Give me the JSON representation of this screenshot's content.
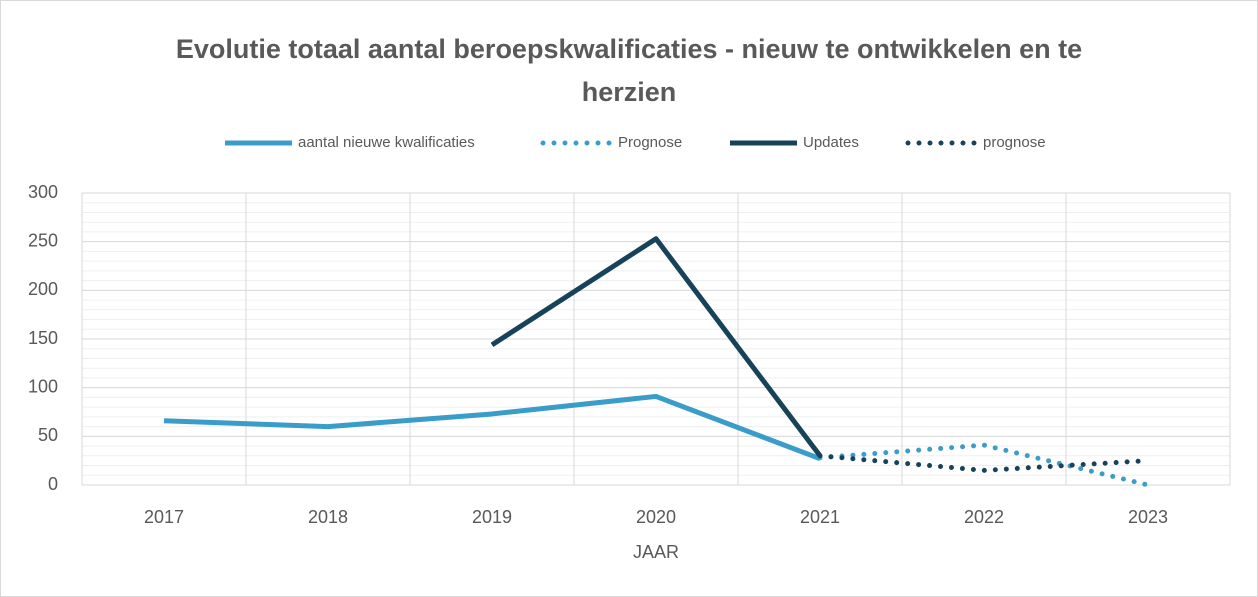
{
  "chart_data": {
    "type": "line",
    "title": "Evolutie totaal aantal beroepskwalificaties  - nieuw te ontwikkelen en te herzien",
    "xlabel": "JAAR",
    "categories": [
      "2017",
      "2018",
      "2019",
      "2020",
      "2021",
      "2022",
      "2023"
    ],
    "series": [
      {
        "name": "aantal nieuwe kwalificaties",
        "color": "#3a9cc9",
        "style": "solid",
        "values": [
          66,
          60,
          73,
          91,
          27,
          null,
          null
        ]
      },
      {
        "name": "Prognose",
        "color": "#3a9cc9",
        "style": "dotted",
        "values": [
          null,
          null,
          null,
          null,
          28,
          41,
          0
        ]
      },
      {
        "name": "Updates",
        "color": "#17435a",
        "style": "solid",
        "values": [
          null,
          null,
          144,
          253,
          30,
          null,
          null
        ]
      },
      {
        "name": "prognose",
        "color": "#17435a",
        "style": "dotted",
        "values": [
          null,
          null,
          null,
          null,
          30,
          15,
          25
        ]
      }
    ],
    "ylim": [
      0,
      300
    ],
    "yticks": [
      0,
      50,
      100,
      150,
      200,
      250,
      300
    ],
    "grid": true,
    "minor_grid_step": 10,
    "legend": "top"
  }
}
